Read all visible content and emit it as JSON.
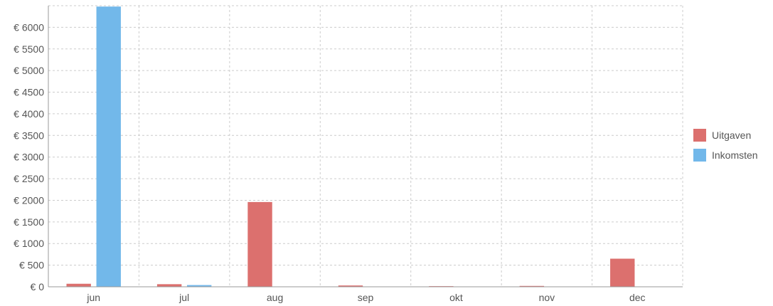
{
  "chart_data": {
    "type": "bar",
    "categories": [
      "jun",
      "jul",
      "aug",
      "sep",
      "okt",
      "nov",
      "dec"
    ],
    "series": [
      {
        "name": "Uitgaven",
        "color": "#dc706e",
        "values": [
          70,
          60,
          1960,
          30,
          15,
          20,
          650
        ]
      },
      {
        "name": "Inkomsten",
        "color": "#72b8ea",
        "values": [
          6480,
          40,
          5,
          5,
          0,
          0,
          5
        ]
      }
    ],
    "y_ticks": [
      "€ 0",
      "€ 500",
      "€ 1000",
      "€ 1500",
      "€ 2000",
      "€ 2500",
      "€ 3000",
      "€ 3500",
      "€ 4000",
      "€ 4500",
      "€ 5000",
      "€ 5500",
      "€ 6000"
    ],
    "ylim": [
      0,
      6500
    ],
    "ytick_step": 500,
    "grid": true,
    "legend_position": "right",
    "title": "",
    "xlabel": "",
    "ylabel": ""
  }
}
